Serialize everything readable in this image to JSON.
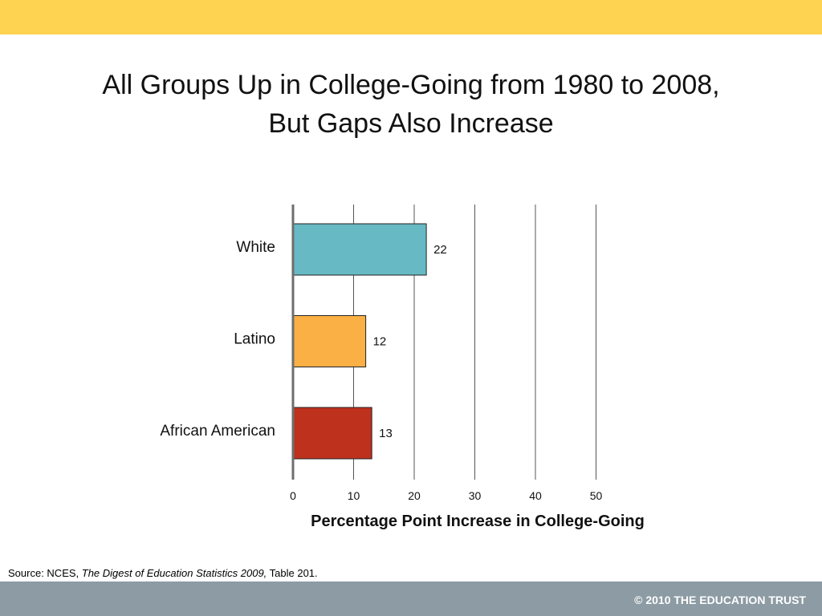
{
  "slide": {
    "title_line1": "All Groups Up in College-Going from 1980 to 2008,",
    "title_line2": "But Gaps Also Increase",
    "source_prefix": "Source: NCES, ",
    "source_italic": "The Digest of Education Statistics 2009,",
    "source_suffix": " Table 201.",
    "footer": "© 2010 THE EDUCATION TRUST"
  },
  "colors": {
    "top_bar": "#FDD351",
    "bottom_bar": "#8C9BA4",
    "gridline": "#555555",
    "axis": "#6E6E6E"
  },
  "chart_data": {
    "type": "bar",
    "orientation": "horizontal",
    "categories": [
      "White",
      "Latino",
      "African American"
    ],
    "values": [
      22,
      12,
      13
    ],
    "bar_colors": [
      "#67B9C3",
      "#FBB045",
      "#BE311D"
    ],
    "data_labels": [
      "22",
      "12",
      "13"
    ],
    "xlabel": "Percentage Point Increase in College-Going",
    "xlim": [
      0,
      50
    ],
    "xticks": [
      0,
      10,
      20,
      30,
      40,
      50
    ],
    "grid": true,
    "legend": "none"
  }
}
